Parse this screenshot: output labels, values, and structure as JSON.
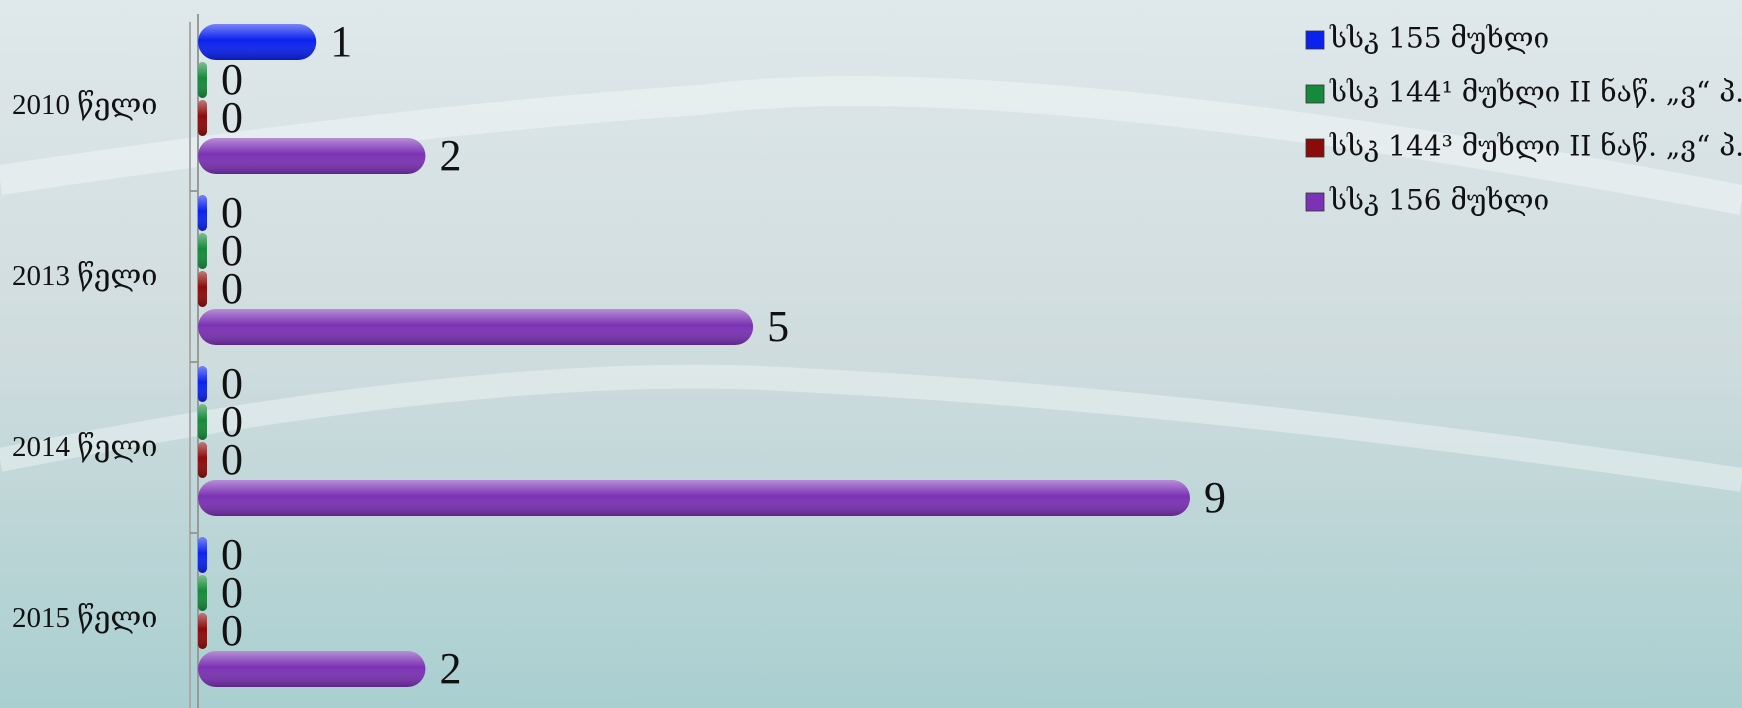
{
  "chart_data": {
    "type": "barh",
    "categories": [
      "2010 წელი",
      "2013 წელი",
      "2014 წელი",
      "2015 წელი"
    ],
    "series": [
      {
        "name": "სსკ 155 მუხლი",
        "color": "#0b22ee",
        "values": [
          1,
          0,
          0,
          0
        ]
      },
      {
        "name": "სსკ 144¹ მუხლი II ნაწ. „ვ“ პ.",
        "color": "#17893c",
        "values": [
          0,
          0,
          0,
          0
        ]
      },
      {
        "name": "სსკ 144³ მუხლი II ნაწ. „ვ“ პ.",
        "color": "#8b0b0b",
        "values": [
          0,
          0,
          0,
          0
        ]
      },
      {
        "name": "სსკ 156 მუხლი",
        "color": "#7b32b4",
        "values": [
          2,
          5,
          9,
          2
        ]
      }
    ],
    "xlim": [
      0,
      9
    ],
    "legend": "top-right"
  }
}
